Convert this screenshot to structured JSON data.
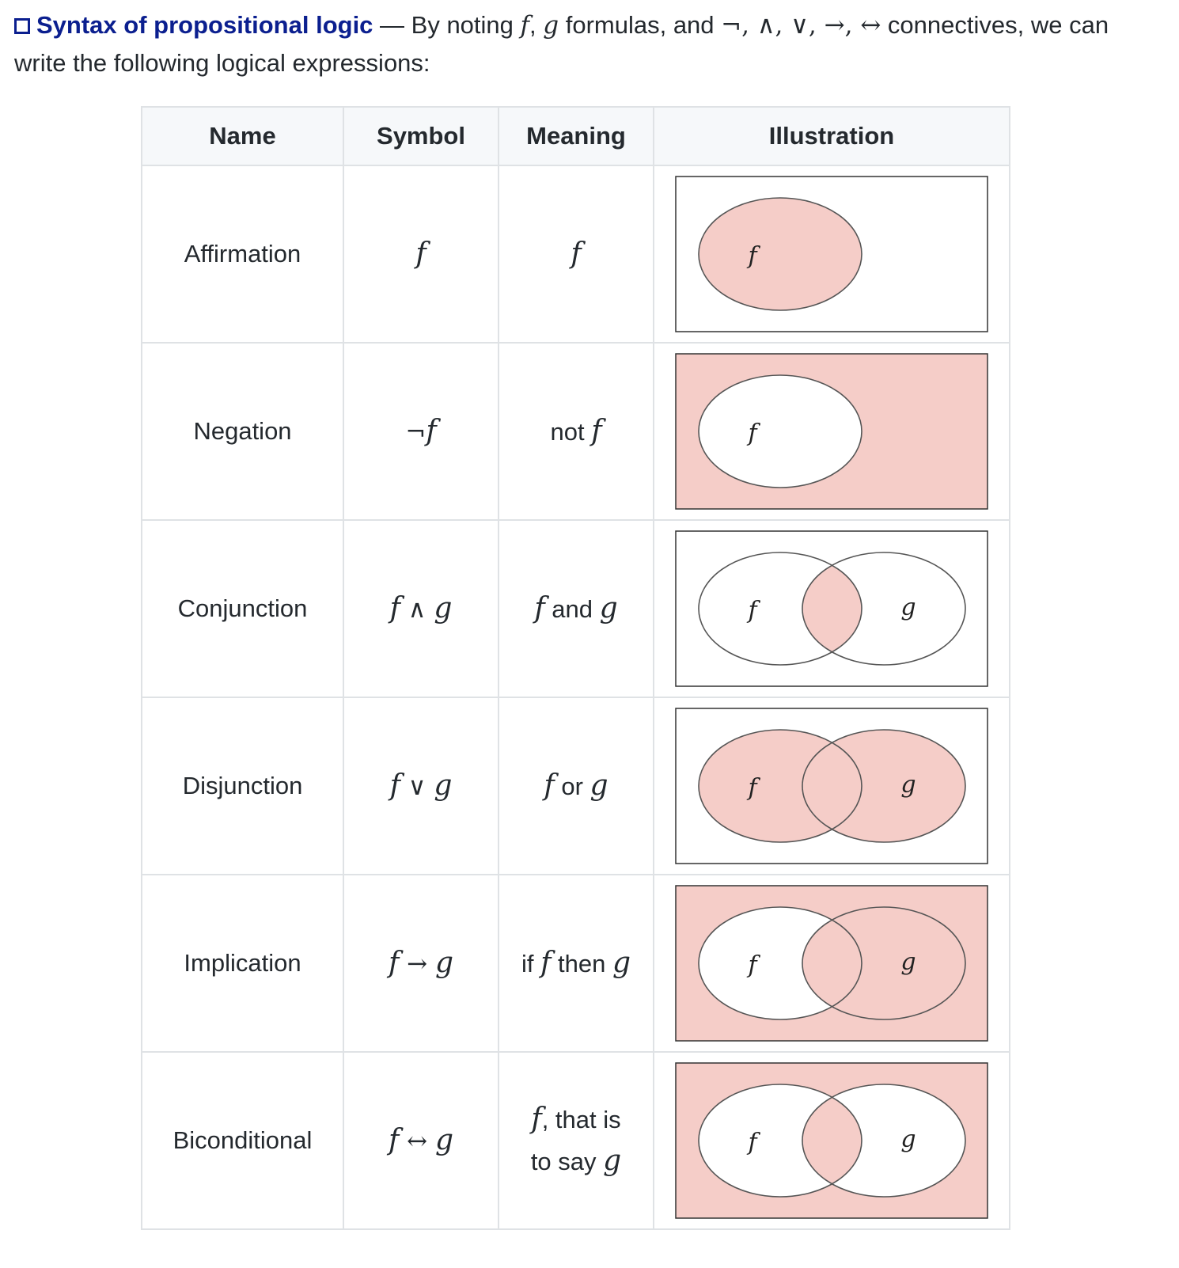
{
  "intro": {
    "title": "Syntax of propositional logic",
    "dash": " — ",
    "text_a": "By noting ",
    "var_f": "f",
    "comma": ", ",
    "var_g": "g",
    "text_b": " formulas, and ",
    "connectives": "¬, ∧, ∨, →, ↔",
    "text_c": " connectives, we can write the following logical expressions:"
  },
  "table": {
    "headers": [
      "Name",
      "Symbol",
      "Meaning",
      "Illustration"
    ],
    "rows": [
      {
        "name": "Affirmation",
        "sym_left": "f",
        "sym_op": "",
        "sym_right": "",
        "mean_pre": "",
        "mean_v1": "f",
        "mean_mid": "",
        "mean_v2": "",
        "venn": "affirmation"
      },
      {
        "name": "Negation",
        "sym_left": "",
        "sym_op": "¬",
        "sym_right": "f",
        "mean_pre": "not ",
        "mean_v1": "f",
        "mean_mid": "",
        "mean_v2": "",
        "venn": "negation"
      },
      {
        "name": "Conjunction",
        "sym_left": "f",
        "sym_op": " ∧ ",
        "sym_right": "g",
        "mean_pre": "",
        "mean_v1": "f",
        "mean_mid": " and ",
        "mean_v2": "g",
        "venn": "conjunction"
      },
      {
        "name": "Disjunction",
        "sym_left": "f",
        "sym_op": " ∨ ",
        "sym_right": "g",
        "mean_pre": "",
        "mean_v1": "f",
        "mean_mid": " or ",
        "mean_v2": "g",
        "venn": "disjunction"
      },
      {
        "name": "Implication",
        "sym_left": "f",
        "sym_op": " → ",
        "sym_right": "g",
        "mean_pre": "if ",
        "mean_v1": "f",
        "mean_mid": " then ",
        "mean_v2": "g",
        "venn": "implication"
      },
      {
        "name": "Biconditional",
        "sym_left": "f",
        "sym_op": " ↔ ",
        "sym_right": "g",
        "mean_pre": "",
        "mean_v1": "f",
        "mean_mid": ", that is to say ",
        "mean_v2": "g",
        "venn": "biconditional"
      }
    ]
  },
  "venn_labels": {
    "f": "f",
    "g": "g"
  },
  "colors": {
    "fill": "#f5cdc8",
    "stroke": "#555555",
    "frame": "#333333",
    "link": "#0b1f8f"
  }
}
